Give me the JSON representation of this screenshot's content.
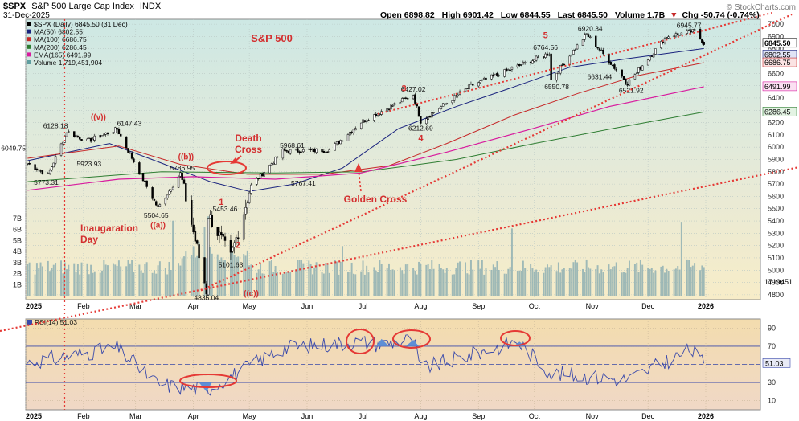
{
  "header": {
    "symbol": "$SPX",
    "name": "S&P 500 Large Cap Index",
    "exchange": "INDX",
    "date": "31-Dec-2025",
    "open": "Open 6898.82",
    "high": "High 6901.42",
    "low": "Low 6844.55",
    "last": "Last 6845.50",
    "volume": "Volume 1.7B",
    "chg": "Chg -50.74 (-0.74%)",
    "chg_arrow": "▼",
    "watermark": "© StockCharts.com"
  },
  "legend": [
    {
      "text": "$SPX (Daily) 6845.50 (31 Dec)",
      "color": "#000000"
    },
    {
      "text": "MA(50) 6802.55",
      "color": "#1a237e"
    },
    {
      "text": "MA(100) 6686.75",
      "color": "#c62828"
    },
    {
      "text": "MA(200) 6286.45",
      "color": "#2e7d32"
    },
    {
      "text": "EMA(165) 6491.99",
      "color": "#d81b9e"
    },
    {
      "text": "Volume 1,719,451,904",
      "color": "#5f9ea0"
    }
  ],
  "chart_data": [
    {
      "type": "line",
      "title": "S&P 500",
      "x": [
        "2025-01-02",
        "2025-01-13",
        "2025-01-23",
        "2025-02-03",
        "2025-02-19",
        "2025-03-13",
        "2025-03-25",
        "2025-04-08",
        "2025-04-09",
        "2025-04-21",
        "2025-05-02",
        "2025-05-19",
        "2025-06-13",
        "2025-06-30",
        "2025-07-28",
        "2025-08-01",
        "2025-08-28",
        "2025-10-09",
        "2025-10-10",
        "2025-10-29",
        "2025-11-20",
        "2025-12-11",
        "2025-12-26",
        "2025-12-31"
      ],
      "series": [
        {
          "values": [
            5868,
            5773,
            6128,
            6049,
            6147,
            5504,
            5786,
            4835,
            5453,
            5101,
            5686,
            5968,
            5977,
            6205,
            6427,
            6212,
            6500,
            6764,
            6550,
            6920,
            6521,
            6901,
            6945,
            6845
          ]
        }
      ],
      "moving_averages": {
        "MA(50)": 6802.55,
        "MA(100)": 6686.75,
        "MA(200)": 6286.45,
        "EMA(165)": 6491.99
      },
      "y_ticks": [
        4800,
        4900,
        5000,
        5100,
        5200,
        5300,
        5400,
        5500,
        5600,
        5700,
        5800,
        5900,
        6000,
        6100,
        6200,
        6300,
        6400,
        6500,
        6600,
        6700,
        6800,
        6900,
        7000
      ],
      "ylim": [
        4760,
        7040
      ],
      "x_ticks": [
        "2025",
        "Feb",
        "Mar",
        "Apr",
        "May",
        "Jun",
        "Jul",
        "Aug",
        "Sep",
        "Oct",
        "Nov",
        "Dec",
        "2026"
      ],
      "right_value_labels": [
        "6845.50",
        "6802.55",
        "6686.75",
        "6491.99",
        "6286.45"
      ],
      "price_annotations": [
        "6049.75",
        "6128.18",
        "6147.43",
        "5923.93",
        "5773.31",
        "5504.65",
        "5786.95",
        "5453.46",
        "5101.63",
        "4835.04",
        "5968.61",
        "5767.41",
        "6427.02",
        "6212.69",
        "6764.56",
        "6550.78",
        "6920.34",
        "6631.44",
        "6521.92",
        "6945.77"
      ],
      "wave_labels": [
        "((v))",
        "((a))",
        "((b))",
        "((c))",
        "1",
        "2",
        "3",
        "4",
        "5"
      ],
      "text_annotations": [
        "S&P 500",
        "Death Cross",
        "Golden Cross",
        "Inaugaration Day"
      ],
      "volume": {
        "last_value": "1719451",
        "y_ticks": [
          "1B",
          "2B",
          "3B",
          "4B",
          "5B",
          "6B",
          "7B"
        ]
      },
      "grid": true
    },
    {
      "type": "line",
      "title": "RSI(14) 51.03",
      "x": [
        "2025-01-02",
        "2025-02-19",
        "2025-03-13",
        "2025-04-08",
        "2025-05-19",
        "2025-06-30",
        "2025-07-10",
        "2025-07-28",
        "2025-08-01",
        "2025-09-22",
        "2025-10-10",
        "2025-11-20",
        "2025-12-24",
        "2025-12-31"
      ],
      "series": [
        {
          "name": "RSI(14)",
          "values": [
            52,
            68,
            28,
            22,
            68,
            75,
            72,
            78,
            45,
            75,
            40,
            33,
            66,
            51.03
          ]
        }
      ],
      "y_ticks": [
        10,
        30,
        50,
        70,
        90
      ],
      "levels": [
        70,
        30
      ],
      "last_value": "51.03",
      "ylim": [
        0,
        100
      ],
      "x_ticks": [
        "2025",
        "Feb",
        "Mar",
        "Apr",
        "May",
        "Jun",
        "Jul",
        "Aug",
        "Sep",
        "Oct",
        "Nov",
        "Dec",
        "2026"
      ]
    }
  ]
}
